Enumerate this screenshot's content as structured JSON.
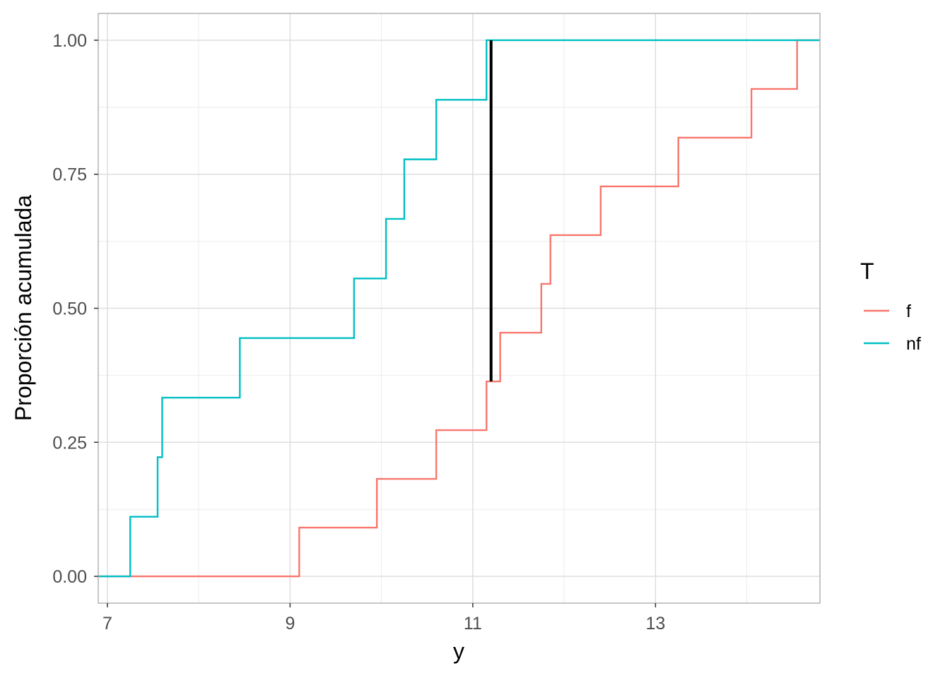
{
  "chart_data": {
    "type": "line",
    "subtype": "ecdf-step",
    "xlabel": "y",
    "ylabel": "Proporción acumulada",
    "xlim": [
      6.9,
      14.8
    ],
    "ylim": [
      -0.05,
      1.05
    ],
    "x_ticks": [
      7,
      9,
      11,
      13
    ],
    "x_tick_labels": [
      "7",
      "9",
      "11",
      "13"
    ],
    "x_minor_ticks": [
      8,
      10,
      12,
      14
    ],
    "y_ticks": [
      0,
      0.25,
      0.5,
      0.75,
      1
    ],
    "y_tick_labels": [
      "0.00",
      "0.25",
      "0.50",
      "0.75",
      "1.00"
    ],
    "y_minor_ticks": [
      0.125,
      0.375,
      0.625,
      0.875
    ],
    "grid": true,
    "theme": "light",
    "legend": {
      "title": "T",
      "placement": "right"
    },
    "series": [
      {
        "name": "f",
        "color": "#F8766D",
        "steps": [
          {
            "x": 9.1,
            "y": 0.0909
          },
          {
            "x": 9.95,
            "y": 0.1818
          },
          {
            "x": 10.6,
            "y": 0.2727
          },
          {
            "x": 11.15,
            "y": 0.3636
          },
          {
            "x": 11.3,
            "y": 0.4545
          },
          {
            "x": 11.75,
            "y": 0.5455
          },
          {
            "x": 11.85,
            "y": 0.6364
          },
          {
            "x": 12.4,
            "y": 0.7273
          },
          {
            "x": 13.25,
            "y": 0.8182
          },
          {
            "x": 14.05,
            "y": 0.9091
          },
          {
            "x": 14.55,
            "y": 1.0
          }
        ]
      },
      {
        "name": "nf",
        "color": "#00BFC4",
        "steps": [
          {
            "x": 7.25,
            "y": 0.1111
          },
          {
            "x": 7.55,
            "y": 0.2222
          },
          {
            "x": 7.6,
            "y": 0.3333
          },
          {
            "x": 8.45,
            "y": 0.4444
          },
          {
            "x": 9.7,
            "y": 0.5556
          },
          {
            "x": 10.05,
            "y": 0.6667
          },
          {
            "x": 10.25,
            "y": 0.7778
          },
          {
            "x": 10.6,
            "y": 0.8889
          },
          {
            "x": 11.15,
            "y": 1.0
          }
        ]
      }
    ],
    "segment": {
      "x": 11.2,
      "y_from": 0.3636,
      "y_to": 1.0,
      "color": "#000000"
    }
  }
}
